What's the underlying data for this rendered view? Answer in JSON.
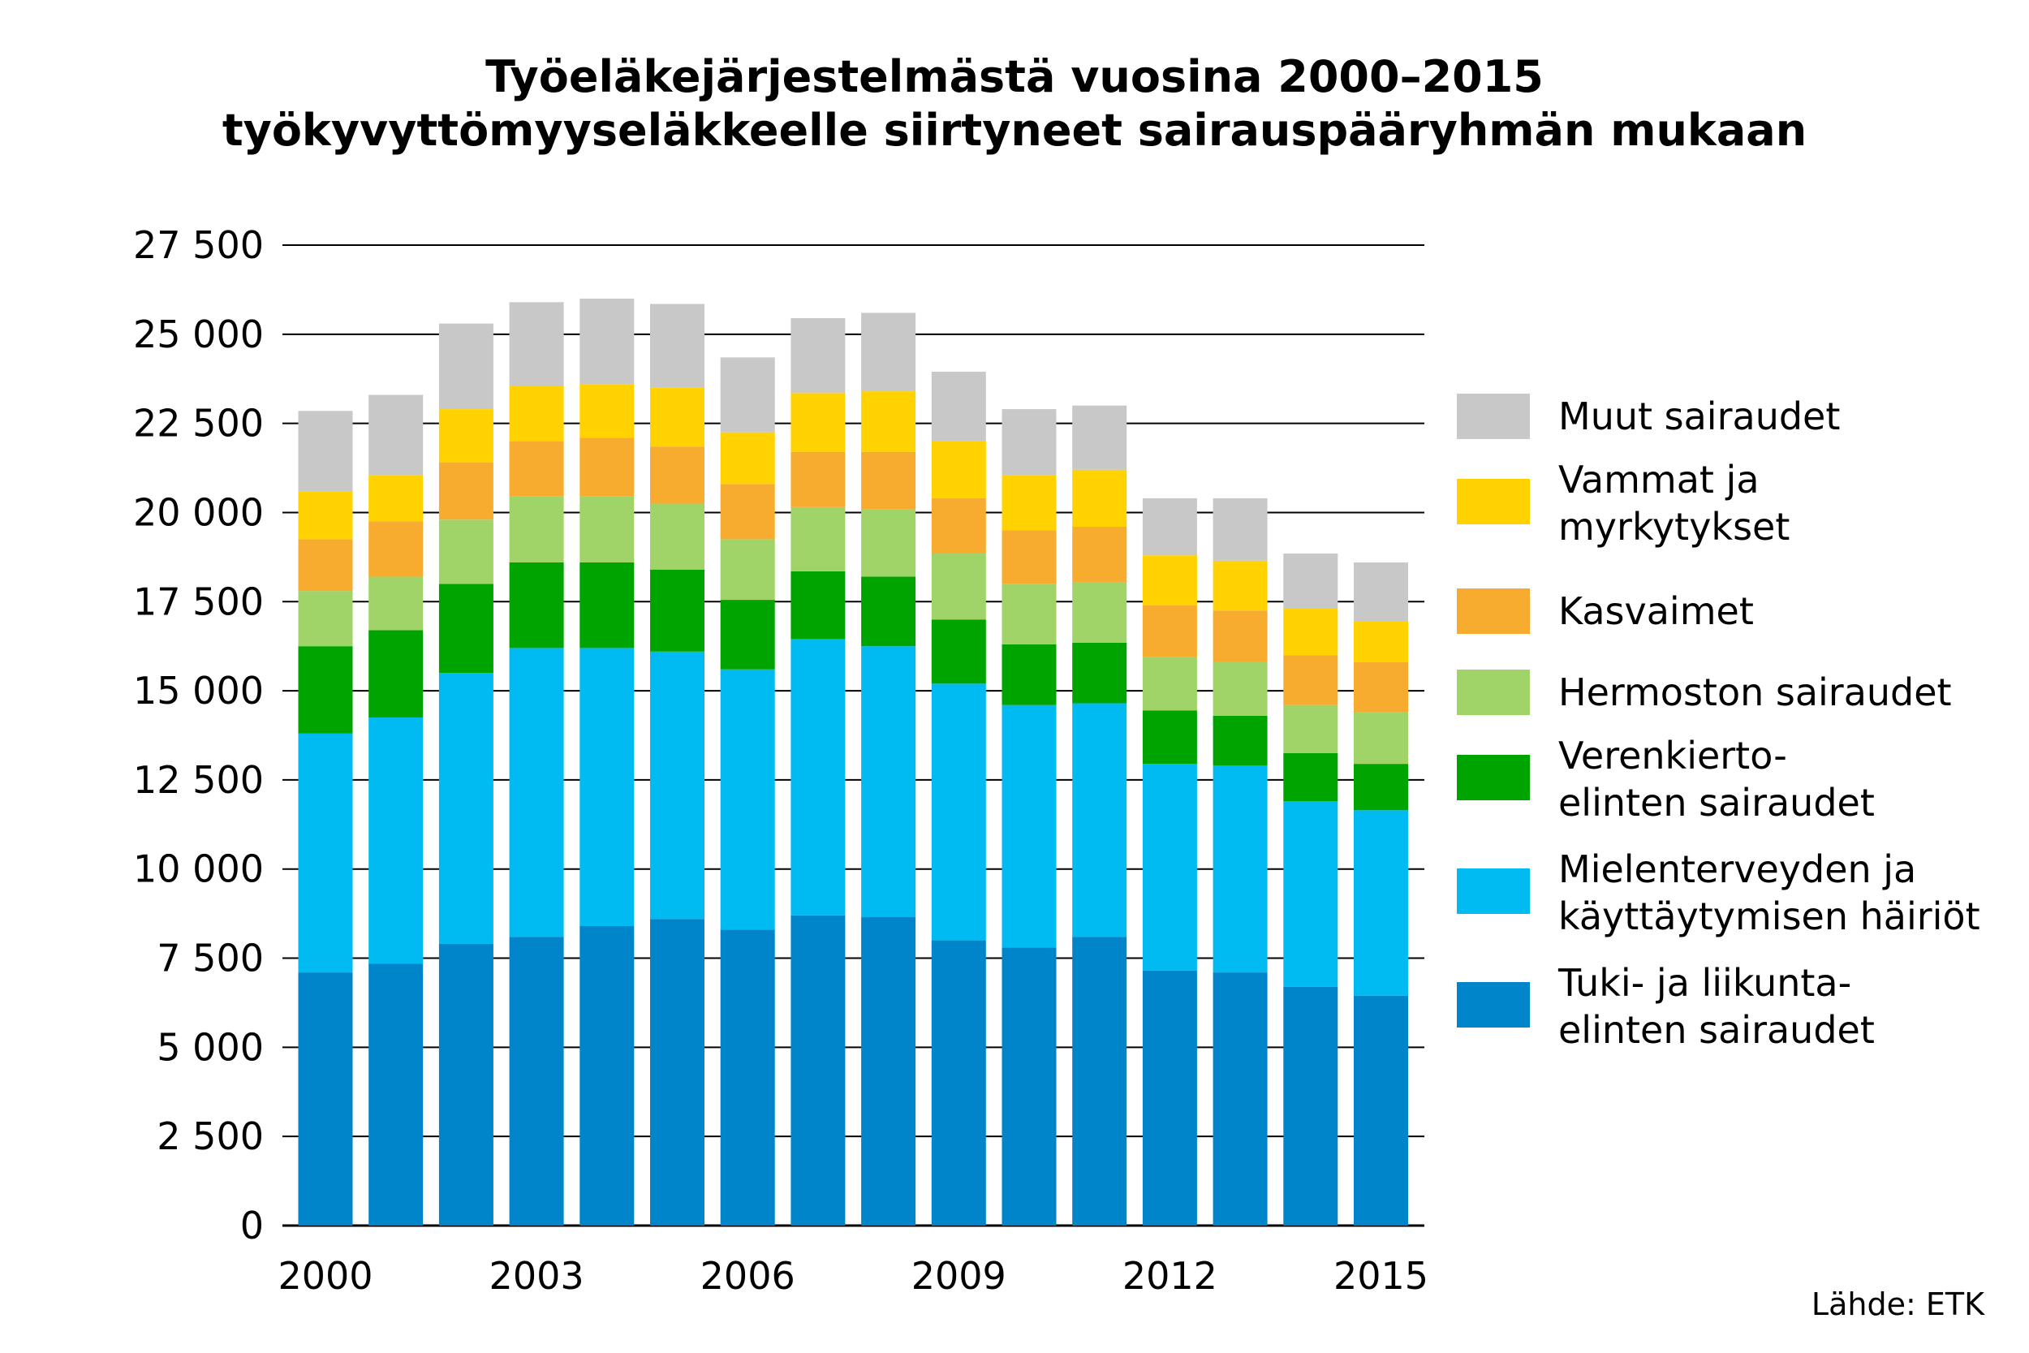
{
  "title": {
    "line1": "Työeläkejärjestelmästä vuosina 2000–2015",
    "line2": "työkyvyttömyyseläkkeelle siirtyneet sairauspääryhmän mukaan"
  },
  "source": "Lähde: ETK",
  "chart_data": {
    "type": "bar",
    "stacked": true,
    "years": [
      2000,
      2001,
      2002,
      2003,
      2004,
      2005,
      2006,
      2007,
      2008,
      2009,
      2010,
      2011,
      2012,
      2013,
      2014,
      2015
    ],
    "x_tick_labels": [
      "2000",
      "2003",
      "2006",
      "2009",
      "2012",
      "2015"
    ],
    "x_tick_years": [
      2000,
      2003,
      2006,
      2009,
      2012,
      2015
    ],
    "y_tick_labels": [
      "0",
      "2 500",
      "5 000",
      "7 500",
      "10 000",
      "12 500",
      "15 000",
      "17 500",
      "20 000",
      "22 500",
      "25 000",
      "27 500"
    ],
    "ylim": [
      0,
      27500
    ],
    "y_step": 2500,
    "grid": "horizontal",
    "legend_position": "right",
    "series": [
      {
        "name": "Tuki- ja liikunta-\nelinten sairaudet",
        "color": "#0085CA",
        "values": [
          7100,
          7350,
          7900,
          8100,
          8400,
          8600,
          8300,
          8700,
          8650,
          8000,
          7800,
          8100,
          7150,
          7100,
          6700,
          6450
        ]
      },
      {
        "name": "Mielenterveyden ja\nkäyttäytymisen häiriöt",
        "color": "#00BAF2",
        "values": [
          6700,
          6900,
          7600,
          8100,
          7800,
          7500,
          7300,
          7750,
          7600,
          7200,
          6800,
          6550,
          5800,
          5800,
          5200,
          5200
        ]
      },
      {
        "name": "Verenkierto-\nelinten sairaudet",
        "color": "#00A400",
        "values": [
          2450,
          2450,
          2500,
          2400,
          2400,
          2300,
          1950,
          1900,
          1950,
          1800,
          1700,
          1700,
          1500,
          1400,
          1350,
          1300
        ]
      },
      {
        "name": "Hermoston sairaudet",
        "color": "#A0D468",
        "values": [
          1550,
          1500,
          1800,
          1850,
          1850,
          1850,
          1700,
          1800,
          1900,
          1850,
          1700,
          1700,
          1500,
          1500,
          1350,
          1450
        ]
      },
      {
        "name": "Kasvaimet",
        "color": "#F7AC2F",
        "values": [
          1450,
          1550,
          1600,
          1550,
          1650,
          1600,
          1550,
          1550,
          1600,
          1550,
          1500,
          1550,
          1450,
          1450,
          1400,
          1400
        ]
      },
      {
        "name": "Vammat ja\nmyrkytykset",
        "color": "#FFD200",
        "values": [
          1350,
          1300,
          1500,
          1550,
          1500,
          1650,
          1450,
          1650,
          1700,
          1600,
          1550,
          1600,
          1400,
          1400,
          1300,
          1150
        ]
      },
      {
        "name": "Muut sairaudet",
        "color": "#C8C8C8",
        "values": [
          2250,
          2250,
          2400,
          2350,
          2400,
          2350,
          2100,
          2100,
          2200,
          1950,
          1850,
          1800,
          1600,
          1750,
          1550,
          1650
        ]
      }
    ]
  }
}
